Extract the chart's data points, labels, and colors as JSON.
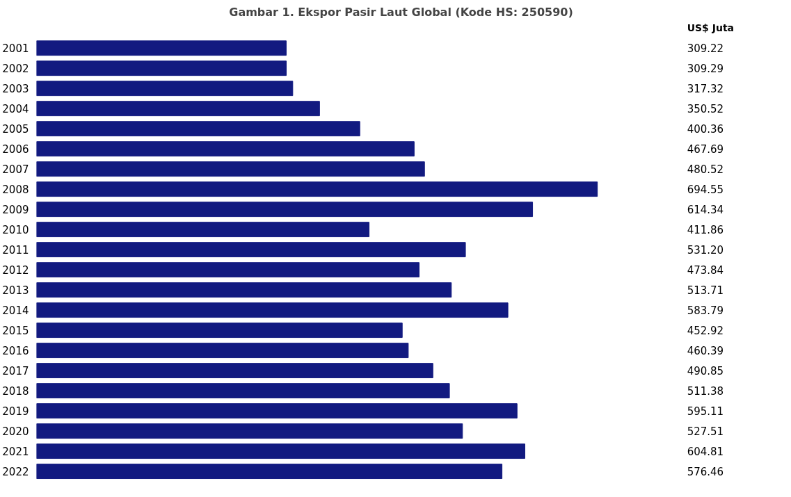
{
  "chart_data": {
    "type": "bar",
    "orientation": "horizontal",
    "title": "Gambar 1. Ekspor Pasir Laut Global (Kode HS: 250590)",
    "annotations": [
      "US$ Juta"
    ],
    "categories": [
      "2001",
      "2002",
      "2003",
      "2004",
      "2005",
      "2006",
      "2007",
      "2008",
      "2009",
      "2010",
      "2011",
      "2012",
      "2013",
      "2014",
      "2015",
      "2016",
      "2017",
      "2018",
      "2019",
      "2020",
      "2021",
      "2022"
    ],
    "values": [
      309.22,
      309.29,
      317.32,
      350.52,
      400.36,
      467.69,
      480.52,
      694.55,
      614.34,
      411.86,
      531.2,
      473.84,
      513.71,
      583.79,
      452.92,
      460.39,
      490.85,
      511.38,
      595.11,
      527.51,
      604.81,
      576.46
    ],
    "value_labels": [
      "309.22",
      "309.29",
      "317.32",
      "350.52",
      "400.36",
      "467.69",
      "480.52",
      "694.55",
      "614.34",
      "411.86",
      "531.20",
      "473.84",
      "513.71",
      "583.79",
      "452.92",
      "460.39",
      "490.85",
      "511.38",
      "595.11",
      "527.51",
      "604.81",
      "576.46"
    ],
    "color": "#121a80"
  }
}
